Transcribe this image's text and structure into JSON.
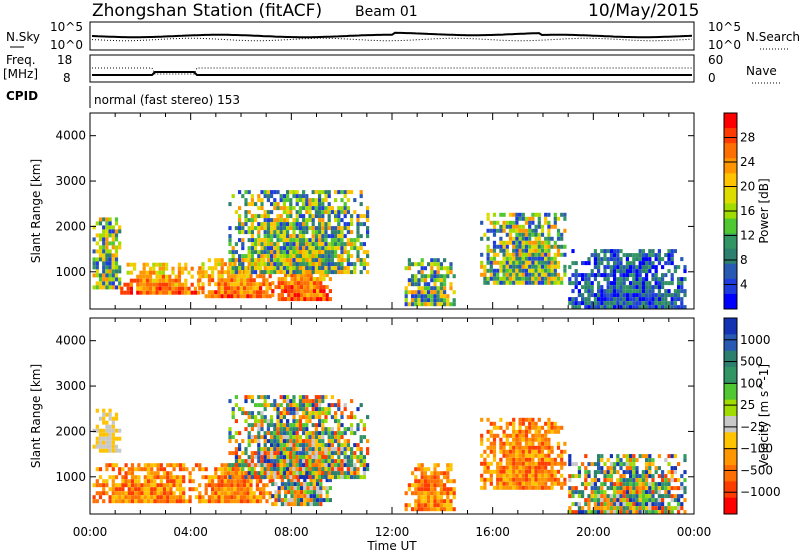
{
  "header": {
    "title": "Zhongshan Station (fitACF)",
    "beam": "Beam 01",
    "date": "10/May/2015"
  },
  "top_panels": {
    "nsky_label": "N.Sky",
    "nsky_ticks": [
      "10^5",
      "10^0"
    ],
    "nsearch_label": "N.Search",
    "nsearch_ticks": [
      "10^5",
      "10^0"
    ],
    "freq_label": "Freq.",
    "freq_unit": "[MHz]",
    "freq_ticks": [
      "18",
      "8"
    ],
    "nave_label": "Nave",
    "nave_ticks": [
      "60",
      "0"
    ],
    "cpid_label": "CPID",
    "cpid_text": "normal (fast stereo) 153"
  },
  "chart_data": [
    {
      "type": "heatmap",
      "name": "power-panel",
      "ylabel": "Slant Range [km]",
      "yticks": [
        "4000",
        "3000",
        "2000",
        "1000"
      ],
      "ylim": [
        180,
        4500
      ],
      "xticks": [
        "00:00",
        "04:00",
        "08:00",
        "12:00",
        "16:00",
        "20:00",
        "00:00"
      ],
      "xlim": [
        0,
        24
      ],
      "colorbar": {
        "label": "Power [dB]",
        "ticks": [
          "28",
          "24",
          "20",
          "16",
          "12",
          "8",
          "4"
        ],
        "colors": [
          "#ff0000",
          "#ff3c00",
          "#ff6e00",
          "#ff9600",
          "#ffc300",
          "#dcdc00",
          "#a0dc00",
          "#50c832",
          "#329664",
          "#2d7f6e",
          "#285ab4",
          "#1e3cdc",
          "#0000ff"
        ]
      },
      "series": [
        {
          "x": [
            0.1,
            1.2
          ],
          "y": [
            700,
            2200
          ],
          "level": "mixed"
        },
        {
          "x": [
            1.2,
            4.3
          ],
          "y": [
            500,
            1200
          ],
          "level": "high"
        },
        {
          "x": [
            4.3,
            7.2
          ],
          "y": [
            500,
            1300
          ],
          "level": "high"
        },
        {
          "x": [
            7.2,
            9.6
          ],
          "y": [
            420,
            1500
          ],
          "level": "high"
        },
        {
          "x": [
            5.5,
            11.0
          ],
          "y": [
            1000,
            2800
          ],
          "level": "mixed"
        },
        {
          "x": [
            12.5,
            14.5
          ],
          "y": [
            300,
            1300
          ],
          "level": "mixed"
        },
        {
          "x": [
            15.5,
            18.9
          ],
          "y": [
            800,
            2300
          ],
          "level": "mixed"
        },
        {
          "x": [
            19.0,
            23.7
          ],
          "y": [
            250,
            1500
          ],
          "level": "low"
        }
      ]
    },
    {
      "type": "heatmap",
      "name": "velocity-panel",
      "ylabel": "Slant Range [km]",
      "yticks": [
        "4000",
        "3000",
        "2000",
        "1000"
      ],
      "ylim": [
        180,
        4500
      ],
      "xticks": [
        "00:00",
        "04:00",
        "08:00",
        "12:00",
        "16:00",
        "20:00",
        "00:00"
      ],
      "xlim": [
        0,
        24
      ],
      "xlabel": "Time UT",
      "colorbar": {
        "label": "Velocity [m s^-1]",
        "ticks": [
          "1000",
          "500",
          "100",
          "25",
          "−25",
          "−100",
          "−500",
          "−1000"
        ],
        "colors": [
          "#1432b4",
          "#285ab4",
          "#2d7f6e",
          "#329664",
          "#50c832",
          "#a0dc00",
          "#c8c8c8",
          "#ffc300",
          "#ff9600",
          "#ff6e00",
          "#ff3c00",
          "#ff0000"
        ]
      },
      "series": [
        {
          "x": [
            0.1,
            1.2
          ],
          "y": [
            1600,
            2500
          ],
          "level": "near-zero"
        },
        {
          "x": [
            0.1,
            4.3
          ],
          "y": [
            500,
            1300
          ],
          "level": "away"
        },
        {
          "x": [
            4.3,
            7.2
          ],
          "y": [
            500,
            1300
          ],
          "level": "away"
        },
        {
          "x": [
            7.2,
            9.6
          ],
          "y": [
            400,
            1500
          ],
          "level": "mixed"
        },
        {
          "x": [
            5.5,
            11.0
          ],
          "y": [
            1000,
            2800
          ],
          "level": "mixed"
        },
        {
          "x": [
            12.5,
            14.5
          ],
          "y": [
            300,
            1300
          ],
          "level": "away"
        },
        {
          "x": [
            15.5,
            18.9
          ],
          "y": [
            800,
            2300
          ],
          "level": "away"
        },
        {
          "x": [
            19.0,
            23.7
          ],
          "y": [
            250,
            1500
          ],
          "level": "mixed"
        }
      ]
    }
  ]
}
